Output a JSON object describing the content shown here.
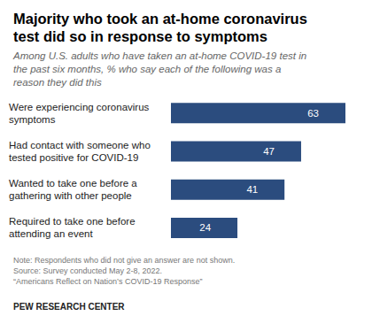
{
  "chart_data": {
    "type": "bar",
    "orientation": "horizontal",
    "title": "Majority who took an at-home coronavirus test did so in response to symptoms",
    "subtitle": "Among U.S. adults who have taken an at-home COVID-19 test in the past six months, % who say each of the following was a reason they did this",
    "categories": [
      "Were experiencing coronavirus symptoms",
      "Had contact with someone who tested positive for COVID-19",
      "Wanted to take one before a gathering with other people",
      "Required to take one before attending an event"
    ],
    "values": [
      63,
      47,
      41,
      24
    ],
    "color": "#2b4c7e",
    "xlim": [
      0,
      63
    ],
    "data_labels": true,
    "tick_labels": false,
    "grid": false,
    "notes": [
      "Note: Respondents who did not give an answer are not shown.",
      "Source: Survey conducted May 2-8, 2022.",
      "“Americans Reflect on Nation’s COVID-19 Response”"
    ],
    "credit": "PEW RESEARCH CENTER"
  }
}
